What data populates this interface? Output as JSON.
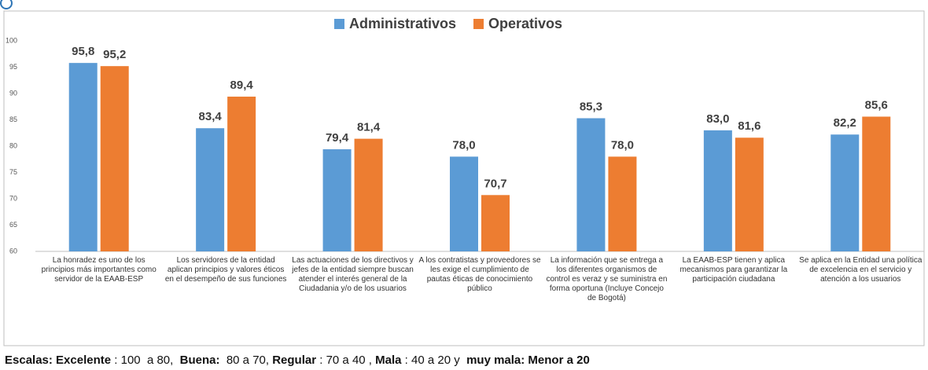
{
  "chart_data": {
    "type": "bar",
    "categories": [
      "La honradez es uno de los principios más importantes como servidor de la EAAB-ESP",
      "Los servidores de la entidad aplican principios y valores éticos en el desempeño de sus funciones",
      "Las actuaciones de los directivos y jefes de la entidad siempre buscan atender el interés general de la Ciudadania y/o de los usuarios",
      "A los contratistas y proveedores se les exige el cumplimiento de pautas éticas de conocimiento público",
      "La información que se entrega a los diferentes organismos de control es veraz y se suministra en forma oportuna (Incluye Concejo de Bogotá)",
      "La EAAB-ESP tienen y aplica mecanismos para garantizar la participación ciudadana",
      "Se aplica en la Entidad una política de excelencia en el servicio y atención a los usuarios"
    ],
    "series": [
      {
        "name": "Administrativos",
        "color": "#5b9bd5",
        "values": [
          95.8,
          83.4,
          79.4,
          78.0,
          85.3,
          83.0,
          82.2
        ],
        "value_labels": [
          "95,8",
          "83,4",
          "79,4",
          "78,0",
          "85,3",
          "83,0",
          "82,2"
        ]
      },
      {
        "name": "Operativos",
        "color": "#ed7d31",
        "values": [
          95.2,
          89.4,
          81.4,
          70.7,
          78.0,
          81.6,
          85.6
        ],
        "value_labels": [
          "95,2",
          "89,4",
          "81,4",
          "70,7",
          "78,0",
          "81,6",
          "85,6"
        ]
      }
    ],
    "ylim": [
      60,
      100
    ],
    "yticks": [
      60,
      65,
      70,
      75,
      80,
      85,
      90,
      95,
      100
    ],
    "grid": false,
    "legend": "top",
    "note": [
      {
        "text": "Escalas: Excelente",
        "bold": true
      },
      {
        "text": " : 100  a 80,  ",
        "bold": false
      },
      {
        "text": "Buena:",
        "bold": true
      },
      {
        "text": "  80 a 70, ",
        "bold": false
      },
      {
        "text": "Regular",
        "bold": true
      },
      {
        "text": " : 70 a 40 , ",
        "bold": false
      },
      {
        "text": "Mala",
        "bold": true
      },
      {
        "text": " : 40 a 20 y  ",
        "bold": false
      },
      {
        "text": "muy mala: Menor a 20",
        "bold": true
      }
    ]
  }
}
